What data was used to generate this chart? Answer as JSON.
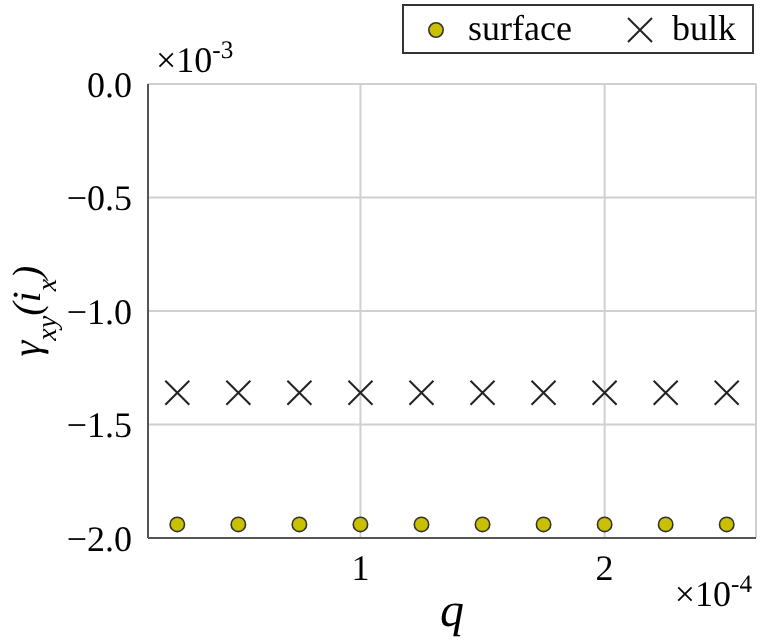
{
  "chart_data": {
    "type": "scatter",
    "xlabel": "q",
    "ylabel": "γ$_{xy}$(i$_{x}$)",
    "x": [
      0.25,
      0.5,
      0.75,
      1.0,
      1.25,
      1.5,
      1.75,
      2.0,
      2.25,
      2.5
    ],
    "series": [
      {
        "name": "surface",
        "color": "#c8c000",
        "marker": "circle",
        "values": [
          -1.94,
          -1.94,
          -1.94,
          -1.94,
          -1.94,
          -1.94,
          -1.94,
          -1.94,
          -1.94,
          -1.94
        ]
      },
      {
        "name": "bulk",
        "color": "#222222",
        "marker": "cross",
        "values": [
          -1.36,
          -1.36,
          -1.36,
          -1.36,
          -1.36,
          -1.36,
          -1.36,
          -1.36,
          -1.36,
          -1.36
        ]
      }
    ],
    "xlim": [
      0.13,
      2.62
    ],
    "xticks": [
      1,
      2
    ],
    "ylim": [
      -2.0,
      0.0
    ],
    "yticks": [
      {
        "value": -2.0,
        "label": "−2.0"
      },
      {
        "value": -1.5,
        "label": "−1.5"
      },
      {
        "value": -1.0,
        "label": "−1.0"
      },
      {
        "value": -0.5,
        "label": "−0.5"
      },
      {
        "value": 0.0,
        "label": "0.0"
      }
    ],
    "annotations": [
      "×10$^{-3}$",
      "×10$^{-4}$"
    ],
    "grid": true,
    "legend": "top right"
  }
}
